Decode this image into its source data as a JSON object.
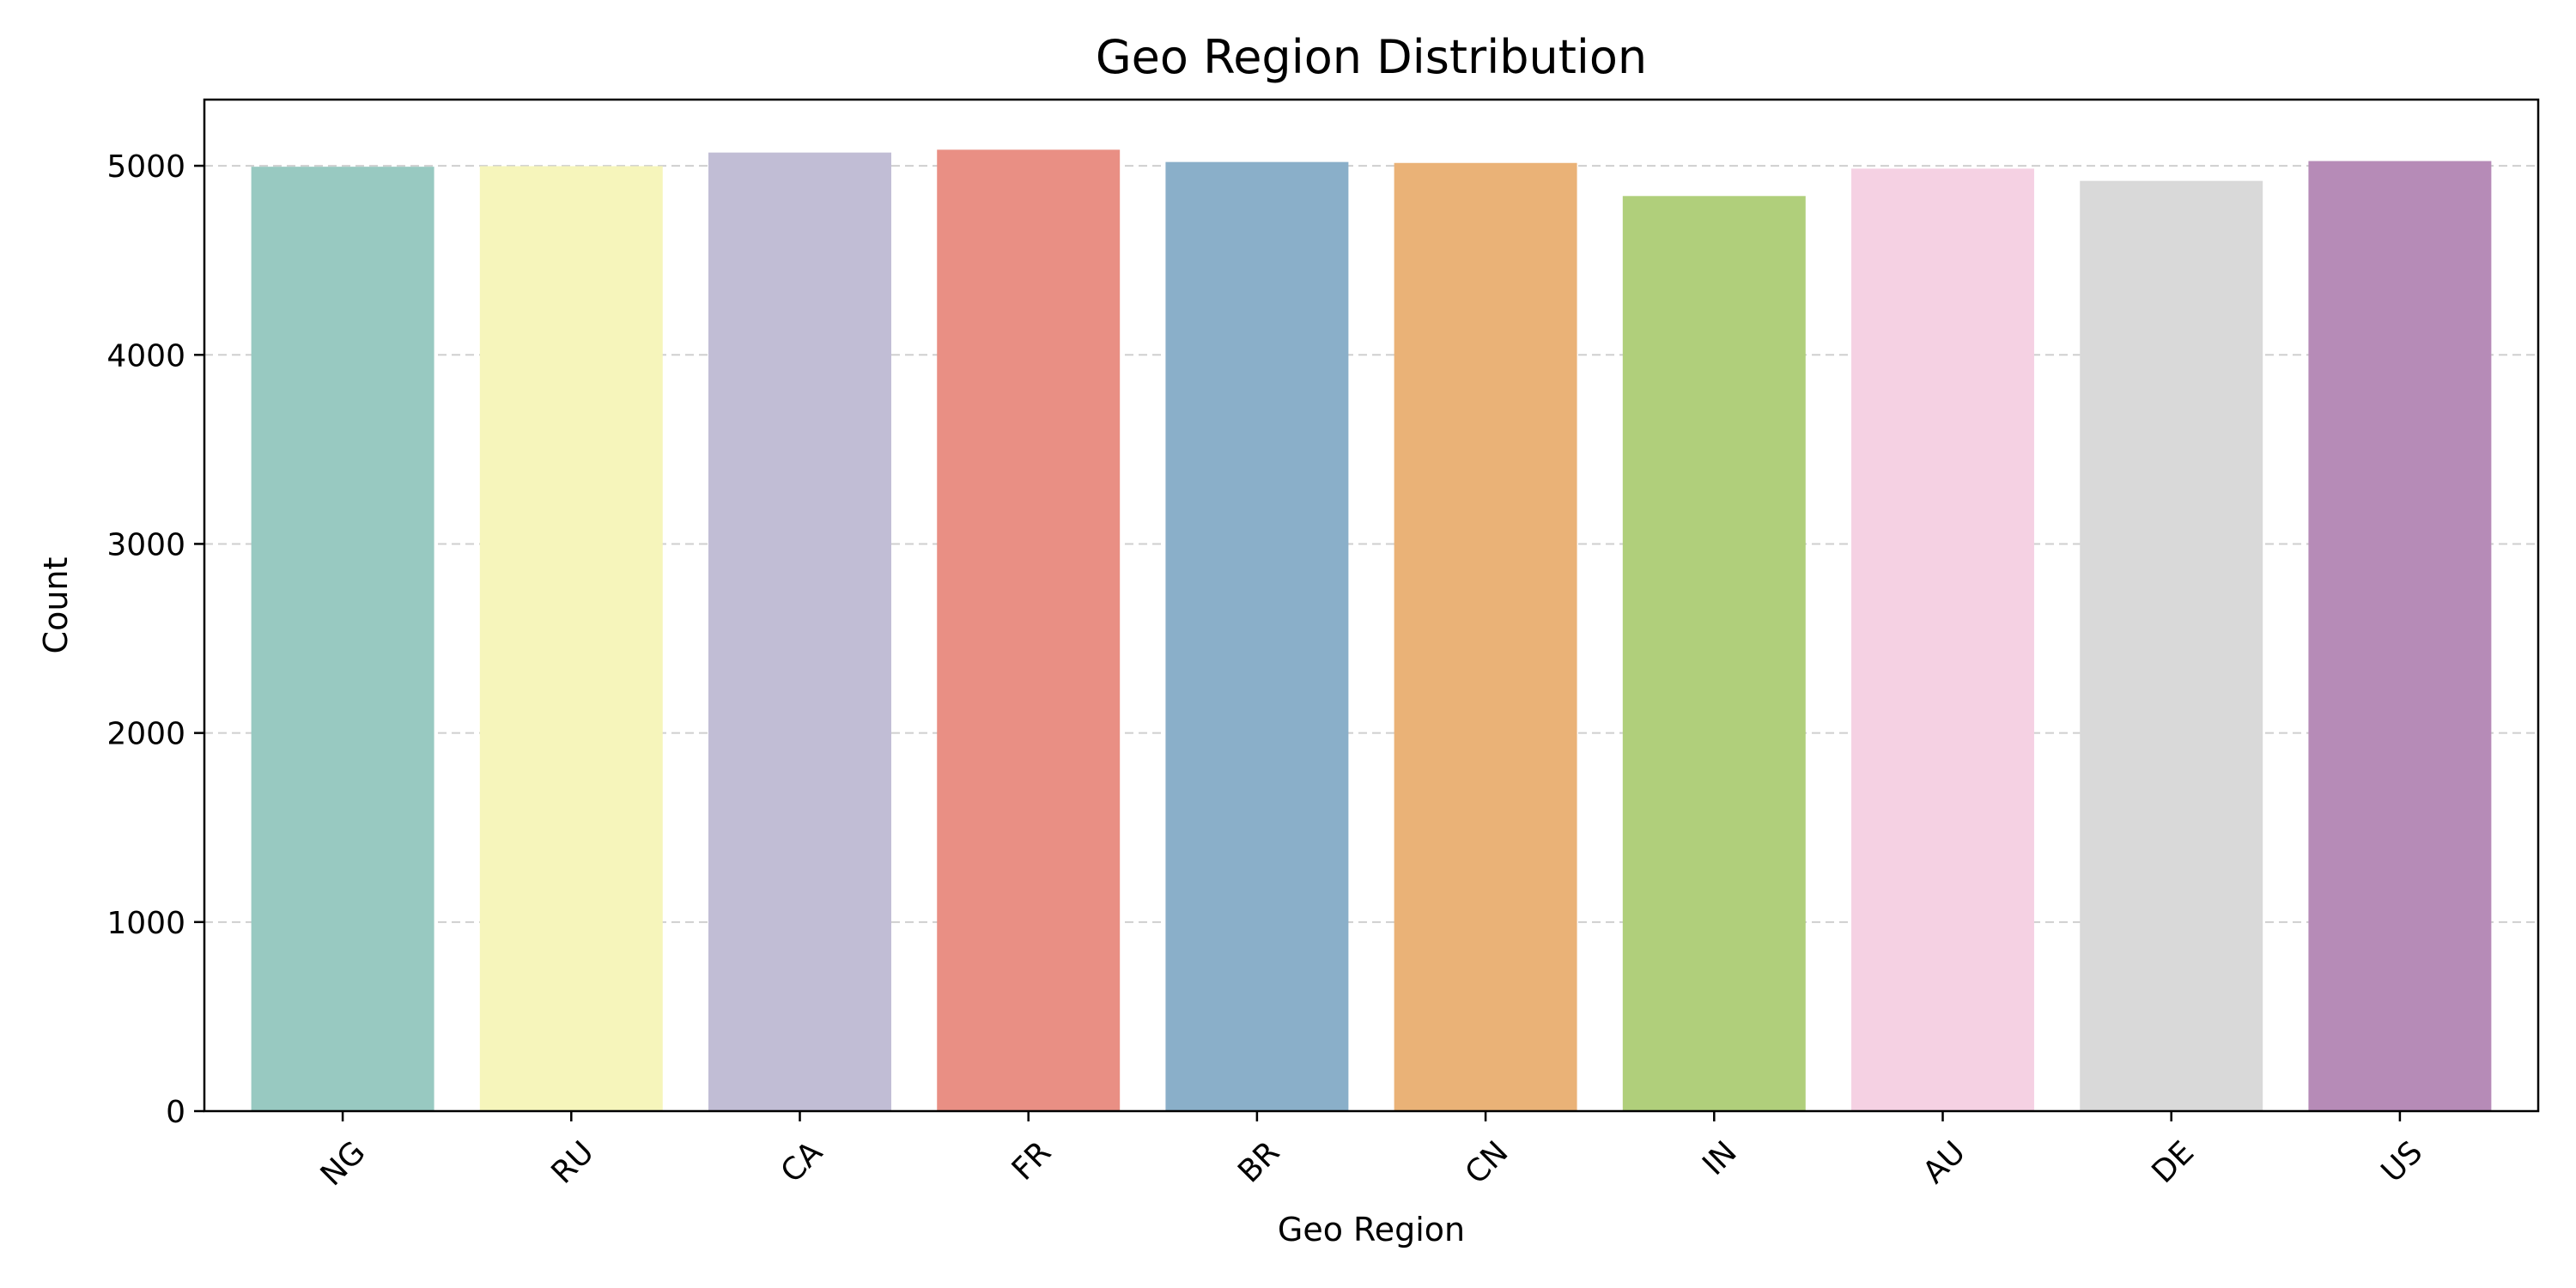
{
  "chart_data": {
    "type": "bar",
    "title": "Geo Region Distribution",
    "xlabel": "Geo Region",
    "ylabel": "Count",
    "categories": [
      "NG",
      "RU",
      "CA",
      "FR",
      "BR",
      "CN",
      "IN",
      "AU",
      "DE",
      "US"
    ],
    "values": [
      4995,
      4998,
      5070,
      5085,
      5020,
      5015,
      4840,
      4985,
      4920,
      5025
    ],
    "ylim": [
      0,
      5350
    ],
    "yticks": [
      0,
      1000,
      2000,
      3000,
      4000,
      5000
    ],
    "ytick_labels": [
      "0",
      "1000",
      "2000",
      "3000",
      "4000",
      "5000"
    ],
    "grid": "y-dashed",
    "x_tick_rotation": 45,
    "colors": [
      "#98c9c1",
      "#f6f5bb",
      "#c1bdd5",
      "#e98f84",
      "#8aafc9",
      "#eab277",
      "#b0cf7b",
      "#f5d1e3",
      "#d9d9d9",
      "#b68bb7"
    ]
  }
}
